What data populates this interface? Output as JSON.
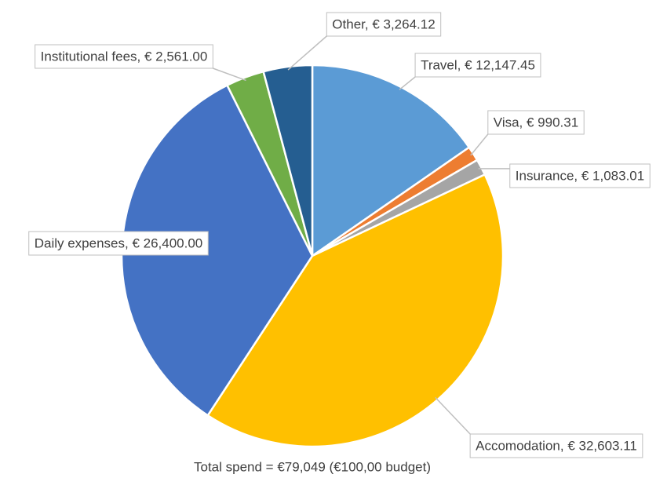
{
  "chart_data": {
    "type": "pie",
    "caption": "Total spend = €79,049 (€100,00 budget)",
    "values": [
      12147.45,
      990.31,
      1083.01,
      32603.11,
      26400.0,
      2561.0,
      3264.12
    ],
    "value_labels": [
      "Travel, € 12,147.45",
      "Visa, € 990.31",
      "Insurance, € 1,083.01",
      "Accomodation, € 32,603.11",
      "Daily expenses, € 26,400.00",
      "Institutional fees, € 2,561.00",
      "Other, € 3,264.12"
    ],
    "colors": [
      "#5b9bd5",
      "#ed7d31",
      "#a5a5a5",
      "#ffc000",
      "#4472c4",
      "#70ad47",
      "#255e91"
    ]
  }
}
